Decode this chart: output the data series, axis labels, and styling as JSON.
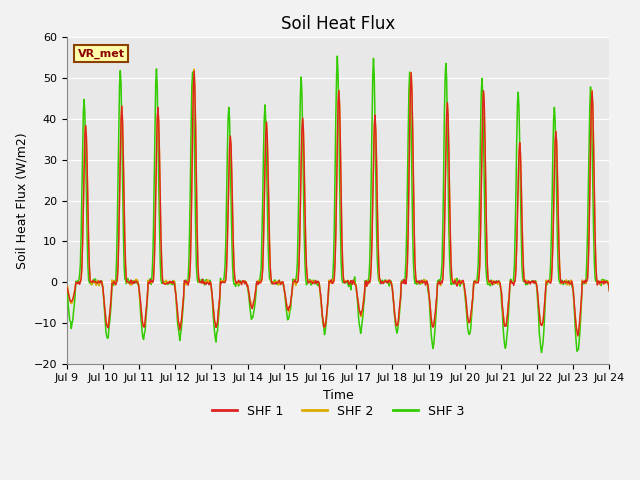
{
  "title": "Soil Heat Flux",
  "xlabel": "Time",
  "ylabel": "Soil Heat Flux (W/m2)",
  "ylim": [
    -20,
    60
  ],
  "colors": {
    "SHF 1": "#dd2222",
    "SHF 2": "#ddaa00",
    "SHF 3": "#33cc00"
  },
  "legend_labels": [
    "SHF 1",
    "SHF 2",
    "SHF 3"
  ],
  "annotation_text": "VR_met",
  "background_color": "#f0f0f0",
  "plot_bg_color": "#e8e8e8",
  "title_fontsize": 12,
  "axis_fontsize": 9,
  "tick_fontsize": 8,
  "day_peaks_shf12": [
    39,
    43,
    43,
    52,
    36,
    39,
    40,
    47,
    41,
    51,
    44,
    47,
    34,
    37,
    47
  ],
  "day_peaks_shf3": [
    45,
    52,
    52,
    52,
    43,
    43,
    50,
    55,
    55,
    51,
    54,
    50,
    47,
    43,
    47
  ],
  "day_troughs_shf12": [
    -5,
    -11,
    -11,
    -11,
    -11,
    -6,
    -7,
    -11,
    -8,
    -11,
    -11,
    -10,
    -11,
    -11,
    -13
  ],
  "day_troughs_shf3": [
    -11,
    -14,
    -14,
    -14,
    -14,
    -9,
    -9,
    -12,
    -12,
    -12,
    -16,
    -13,
    -16,
    -17,
    -17
  ]
}
